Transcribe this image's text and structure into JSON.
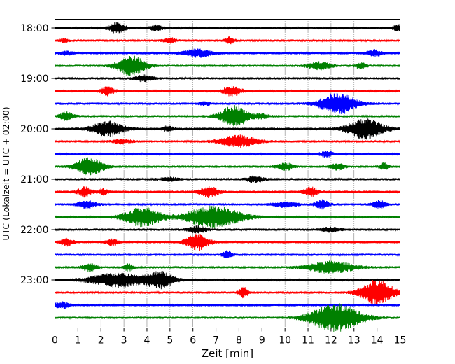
{
  "chart_data": {
    "type": "line",
    "xlabel": "Zeit  [min]",
    "ylabel": "UTC (Lokalzeit = UTC + 02:00)",
    "xlim": [
      0,
      15
    ],
    "x_ticks": [
      0,
      1,
      2,
      3,
      4,
      5,
      6,
      7,
      8,
      9,
      10,
      11,
      12,
      13,
      14,
      15
    ],
    "y_tick_labels": [
      "18:00",
      "19:00",
      "20:00",
      "21:00",
      "22:00",
      "23:00"
    ],
    "grid": "vertical dotted",
    "trace_colors": [
      "#000000",
      "#ff0000",
      "#0000ff",
      "#008000"
    ],
    "trace_minutes": 15,
    "traces": [
      {
        "start": "18:00",
        "color": "#000000",
        "bursts": [
          [
            2.7,
            0.35,
            0.5
          ],
          [
            4.4,
            0.3,
            0.25
          ],
          [
            14.9,
            0.2,
            0.3
          ]
        ]
      },
      {
        "start": "18:15",
        "color": "#ff0000",
        "bursts": [
          [
            0.4,
            0.2,
            0.15
          ],
          [
            5.0,
            0.25,
            0.25
          ],
          [
            7.6,
            0.2,
            0.3
          ]
        ]
      },
      {
        "start": "18:30",
        "color": "#0000ff",
        "bursts": [
          [
            0.5,
            0.3,
            0.15
          ],
          [
            6.2,
            0.6,
            0.35
          ],
          [
            13.9,
            0.3,
            0.3
          ]
        ]
      },
      {
        "start": "18:45",
        "color": "#008000",
        "bursts": [
          [
            3.3,
            0.6,
            0.95
          ],
          [
            11.5,
            0.5,
            0.35
          ],
          [
            13.3,
            0.25,
            0.25
          ]
        ]
      },
      {
        "start": "19:00",
        "color": "#000000",
        "bursts": [
          [
            3.9,
            0.4,
            0.3
          ]
        ]
      },
      {
        "start": "19:15",
        "color": "#ff0000",
        "bursts": [
          [
            2.3,
            0.3,
            0.4
          ],
          [
            7.7,
            0.4,
            0.45
          ]
        ]
      },
      {
        "start": "19:30",
        "color": "#0000ff",
        "bursts": [
          [
            6.5,
            0.25,
            0.15
          ],
          [
            12.3,
            0.8,
            1.0
          ]
        ]
      },
      {
        "start": "19:45",
        "color": "#008000",
        "bursts": [
          [
            0.5,
            0.3,
            0.4
          ],
          [
            7.8,
            0.6,
            1.0
          ],
          [
            9.0,
            0.3,
            0.2
          ]
        ]
      },
      {
        "start": "20:00",
        "color": "#000000",
        "bursts": [
          [
            2.3,
            0.7,
            0.7
          ],
          [
            4.9,
            0.25,
            0.25
          ],
          [
            13.5,
            0.8,
            0.95
          ]
        ]
      },
      {
        "start": "20:15",
        "color": "#ff0000",
        "bursts": [
          [
            2.9,
            0.4,
            0.2
          ],
          [
            8.0,
            0.8,
            0.55
          ]
        ]
      },
      {
        "start": "20:30",
        "color": "#0000ff",
        "bursts": [
          [
            11.8,
            0.25,
            0.3
          ]
        ]
      },
      {
        "start": "20:45",
        "color": "#008000",
        "bursts": [
          [
            1.5,
            0.6,
            0.85
          ],
          [
            10.0,
            0.35,
            0.35
          ],
          [
            12.3,
            0.3,
            0.3
          ],
          [
            14.3,
            0.2,
            0.3
          ]
        ]
      },
      {
        "start": "21:00",
        "color": "#000000",
        "bursts": [
          [
            5.0,
            0.4,
            0.15
          ],
          [
            8.7,
            0.35,
            0.3
          ]
        ]
      },
      {
        "start": "21:15",
        "color": "#ff0000",
        "bursts": [
          [
            1.3,
            0.3,
            0.45
          ],
          [
            2.1,
            0.2,
            0.3
          ],
          [
            6.7,
            0.4,
            0.5
          ],
          [
            11.1,
            0.3,
            0.45
          ]
        ]
      },
      {
        "start": "21:30",
        "color": "#0000ff",
        "bursts": [
          [
            1.4,
            0.4,
            0.35
          ],
          [
            10.0,
            0.5,
            0.25
          ],
          [
            11.6,
            0.3,
            0.4
          ],
          [
            14.1,
            0.3,
            0.35
          ]
        ]
      },
      {
        "start": "21:45",
        "color": "#008000",
        "bursts": [
          [
            3.8,
            0.8,
            0.9
          ],
          [
            6.9,
            1.2,
            1.0
          ]
        ]
      },
      {
        "start": "22:00",
        "color": "#000000",
        "bursts": [
          [
            6.2,
            0.4,
            0.3
          ],
          [
            12.0,
            0.4,
            0.2
          ]
        ]
      },
      {
        "start": "22:15",
        "color": "#ff0000",
        "bursts": [
          [
            0.5,
            0.3,
            0.35
          ],
          [
            2.5,
            0.25,
            0.3
          ],
          [
            6.2,
            0.5,
            0.75
          ]
        ]
      },
      {
        "start": "22:30",
        "color": "#0000ff",
        "bursts": [
          [
            7.5,
            0.2,
            0.35
          ]
        ]
      },
      {
        "start": "22:45",
        "color": "#008000",
        "bursts": [
          [
            1.5,
            0.3,
            0.35
          ],
          [
            3.2,
            0.2,
            0.3
          ],
          [
            12.0,
            1.0,
            0.55
          ]
        ]
      },
      {
        "start": "23:00",
        "color": "#000000",
        "bursts": [
          [
            2.7,
            1.2,
            0.65
          ],
          [
            4.6,
            0.6,
            0.75
          ]
        ]
      },
      {
        "start": "23:15",
        "color": "#ff0000",
        "bursts": [
          [
            8.2,
            0.2,
            0.5
          ],
          [
            14.0,
            0.7,
            1.2
          ]
        ]
      },
      {
        "start": "23:30",
        "color": "#0000ff",
        "bursts": [
          [
            0.3,
            0.3,
            0.3
          ]
        ]
      },
      {
        "start": "23:45",
        "color": "#008000",
        "bursts": [
          [
            12.2,
            1.1,
            1.3
          ]
        ]
      }
    ]
  }
}
